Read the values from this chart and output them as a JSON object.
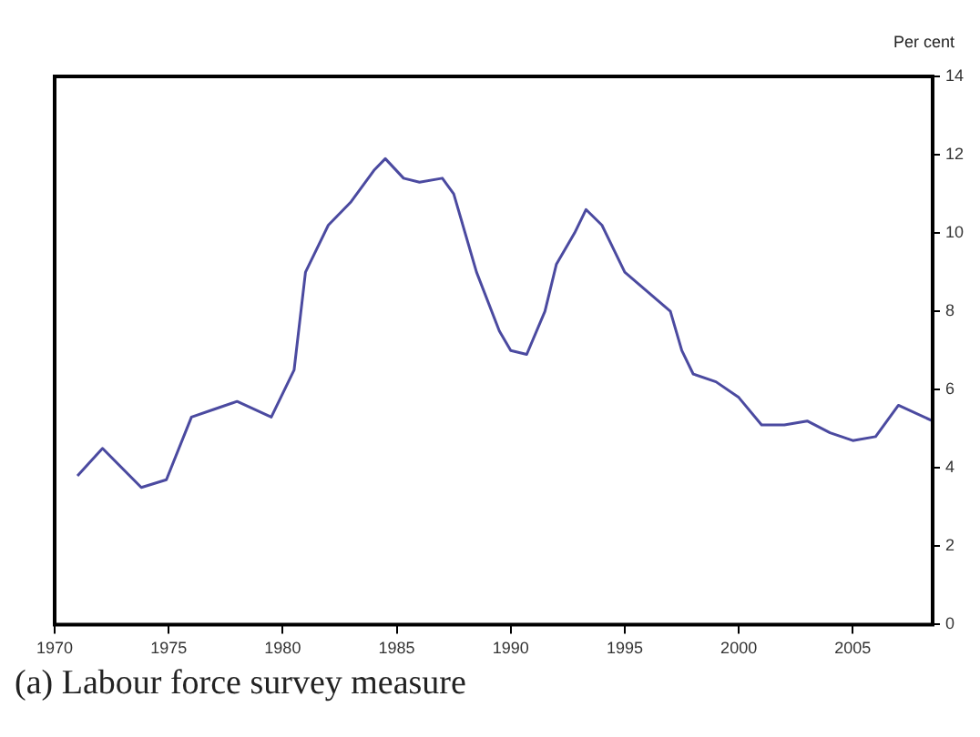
{
  "chart_data": {
    "type": "line",
    "ylabel": "Per cent",
    "annotations": [
      "(a) Labour force survey measure"
    ],
    "xlim": [
      1970,
      2008.5
    ],
    "xticks": [
      1970,
      1975,
      1980,
      1985,
      1990,
      1995,
      2000,
      2005
    ],
    "ylim": [
      0,
      14
    ],
    "yticks": [
      0,
      2,
      4,
      6,
      8,
      10,
      12,
      14
    ],
    "grid": false,
    "legend": false,
    "marker": "none",
    "line_style": "solid",
    "series": [
      {
        "color": "#4b4aa0",
        "x": [
          1971,
          1972.1,
          1973.8,
          1974.9,
          1976,
          1977,
          1978,
          1979.5,
          1980.5,
          1981,
          1982,
          1983,
          1984,
          1984.5,
          1985.3,
          1986,
          1987,
          1987.5,
          1988.5,
          1989.5,
          1990,
          1990.7,
          1991.5,
          1992,
          1992.8,
          1993.3,
          1994,
          1995,
          1996,
          1997,
          1997.5,
          1998,
          1999,
          2000,
          2001,
          2002,
          2003,
          2004,
          2005,
          2006,
          2007,
          2008.5
        ],
        "values": [
          3.8,
          4.5,
          3.5,
          3.7,
          5.3,
          5.5,
          5.7,
          5.3,
          6.5,
          9,
          10.2,
          10.8,
          11.6,
          11.9,
          11.4,
          11.3,
          11.4,
          11,
          9,
          7.5,
          7,
          6.9,
          8,
          9.2,
          10,
          10.6,
          10.2,
          9,
          8.5,
          8,
          7,
          6.4,
          6.2,
          5.8,
          5.1,
          5.1,
          5.2,
          4.9,
          4.7,
          4.8,
          5.6,
          5.2
        ]
      }
    ]
  }
}
